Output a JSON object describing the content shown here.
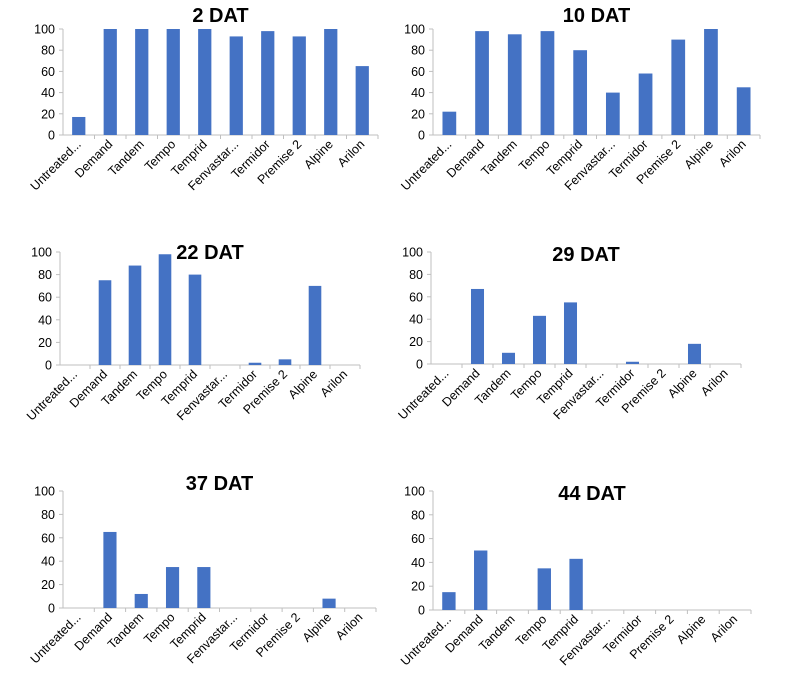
{
  "colors": {
    "bar": "#4472c4",
    "axis": "#bfbfbf",
    "text": "#000000"
  },
  "chart_data": [
    {
      "type": "bar",
      "title": "2 DAT",
      "categories": [
        "Untreated...",
        "Demand",
        "Tandem",
        "Tempo",
        "Temprid",
        "Fenvastar...",
        "Termidor",
        "Premise 2",
        "Alpine",
        "Arilon"
      ],
      "values": [
        17,
        100,
        100,
        100,
        100,
        93,
        98,
        93,
        100,
        65
      ],
      "ylim": [
        0,
        100
      ],
      "yticks": [
        0,
        20,
        40,
        60,
        80,
        100
      ],
      "grid": false,
      "legend": "none"
    },
    {
      "type": "bar",
      "title": "10 DAT",
      "categories": [
        "Untreated...",
        "Demand",
        "Tandem",
        "Tempo",
        "Temprid",
        "Fenvastar...",
        "Termidor",
        "Premise 2",
        "Alpine",
        "Arilon"
      ],
      "values": [
        22,
        98,
        95,
        98,
        80,
        40,
        58,
        90,
        100,
        45
      ],
      "ylim": [
        0,
        100
      ],
      "yticks": [
        0,
        20,
        40,
        60,
        80,
        100
      ],
      "grid": false,
      "legend": "none"
    },
    {
      "type": "bar",
      "title": "22 DAT",
      "categories": [
        "Untreated...",
        "Demand",
        "Tandem",
        "Tempo",
        "Temprid",
        "Fenvastar...",
        "Termidor",
        "Premise 2",
        "Alpine",
        "Arilon"
      ],
      "values": [
        0,
        75,
        88,
        98,
        80,
        0,
        2,
        5,
        70,
        0
      ],
      "ylim": [
        0,
        100
      ],
      "yticks": [
        0,
        20,
        40,
        60,
        80,
        100
      ],
      "grid": false,
      "legend": "none"
    },
    {
      "type": "bar",
      "title": "29 DAT",
      "categories": [
        "Untreated...",
        "Demand",
        "Tandem",
        "Tempo",
        "Temprid",
        "Fenvastar...",
        "Termidor",
        "Premise 2",
        "Alpine",
        "Arilon"
      ],
      "values": [
        0,
        67,
        10,
        43,
        55,
        0,
        2,
        0,
        18,
        0
      ],
      "ylim": [
        0,
        100
      ],
      "yticks": [
        0,
        20,
        40,
        60,
        80,
        100
      ],
      "grid": false,
      "legend": "none"
    },
    {
      "type": "bar",
      "title": "37 DAT",
      "categories": [
        "Untreated...",
        "Demand",
        "Tandem",
        "Tempo",
        "Temprid",
        "Fenvastar...",
        "Termidor",
        "Premise 2",
        "Alpine",
        "Arilon"
      ],
      "values": [
        0,
        65,
        12,
        35,
        35,
        0,
        0,
        0,
        8,
        0
      ],
      "ylim": [
        0,
        100
      ],
      "yticks": [
        0,
        20,
        40,
        60,
        80,
        100
      ],
      "grid": false,
      "legend": "none"
    },
    {
      "type": "bar",
      "title": "44 DAT",
      "categories": [
        "Untreated...",
        "Demand",
        "Tandem",
        "Tempo",
        "Temprid",
        "Fenvastar...",
        "Termidor",
        "Premise 2",
        "Alpine",
        "Arilon"
      ],
      "values": [
        15,
        50,
        0,
        35,
        43,
        0,
        0,
        0,
        0,
        0
      ],
      "ylim": [
        0,
        100
      ],
      "yticks": [
        0,
        20,
        40,
        60,
        80,
        100
      ],
      "grid": false,
      "legend": "none"
    }
  ]
}
